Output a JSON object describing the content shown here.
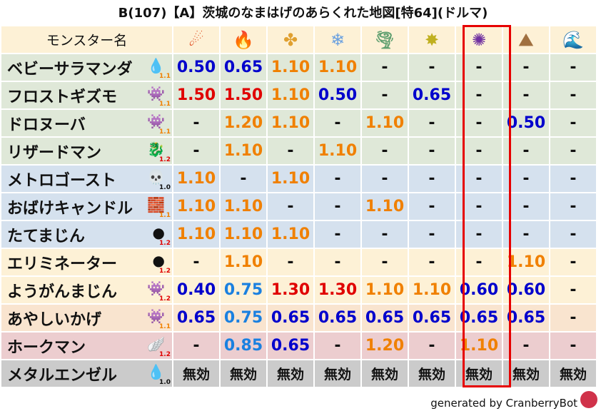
{
  "title": "B(107)【A】茨城のなまはげのあらくれた地図[特64](ドルマ)",
  "header": {
    "name_label": "モンスター名",
    "elements": [
      {
        "icon": "fire-meteor-icon",
        "glyph": "☄",
        "color": "#e0461a"
      },
      {
        "icon": "flame-icon",
        "glyph": "🔥",
        "color": "#f06020"
      },
      {
        "icon": "explosion-icon",
        "glyph": "✤",
        "color": "#e0a030"
      },
      {
        "icon": "ice-crystal-icon",
        "glyph": "❄",
        "color": "#6aa0e0"
      },
      {
        "icon": "tornado-icon",
        "glyph": "🌪",
        "color": "#60a070"
      },
      {
        "icon": "lightning-icon",
        "glyph": "✸",
        "color": "#c0b020"
      },
      {
        "icon": "dark-vortex-icon",
        "glyph": "✺",
        "color": "#7030a0"
      },
      {
        "icon": "rock-mountain-icon",
        "glyph": "⛰",
        "color": "#a07040"
      },
      {
        "icon": "water-wave-icon",
        "glyph": "🌊",
        "color": "#2080d0"
      }
    ],
    "highlighted_column": 6
  },
  "value_colors": {
    "weak": "#0000cc",
    "resist_light": "#1a80e0",
    "slight": "#f08000",
    "strong": "#e00000",
    "immune": "#111111"
  },
  "rows": [
    {
      "name": "ベビーサラマンダ",
      "icon": "water-drop-icon",
      "glyph": "💧",
      "level": "1.1",
      "level_color": "#f08000",
      "bg": "#dfe8d8",
      "values": [
        "0.50",
        "0.65",
        "1.10",
        "1.10",
        "-",
        "-",
        "-",
        "-",
        "-"
      ]
    },
    {
      "name": "フロストギズモ",
      "icon": "purple-gas-monster-icon",
      "glyph": "👾",
      "level": "1.1",
      "level_color": "#f08000",
      "bg": "#dfe8d8",
      "values": [
        "1.50",
        "1.50",
        "1.10",
        "0.50",
        "-",
        "0.65",
        "-",
        "-",
        "-"
      ]
    },
    {
      "name": "ドロヌーバ",
      "icon": "purple-gas-monster-icon",
      "glyph": "👾",
      "level": "1.1",
      "level_color": "#f08000",
      "bg": "#dfe8d8",
      "values": [
        "-",
        "1.20",
        "1.10",
        "-",
        "1.10",
        "-",
        "-",
        "0.50",
        "-"
      ]
    },
    {
      "name": "リザードマン",
      "icon": "red-dragon-icon",
      "glyph": "🐉",
      "level": "1.2",
      "level_color": "#e00000",
      "bg": "#dfe8d8",
      "values": [
        "-",
        "1.10",
        "-",
        "1.10",
        "-",
        "-",
        "-",
        "-",
        "-"
      ]
    },
    {
      "name": "メトロゴースト",
      "icon": "skull-icon",
      "glyph": "💀",
      "level": "1.0",
      "level_color": "#111111",
      "bg": "#d5e1ee",
      "values": [
        "1.10",
        "-",
        "1.10",
        "-",
        "-",
        "-",
        "-",
        "-",
        "-"
      ]
    },
    {
      "name": "おばけキャンドル",
      "icon": "brick-wall-icon",
      "glyph": "🧱",
      "level": "1.1",
      "level_color": "#f08000",
      "bg": "#d5e1ee",
      "values": [
        "1.10",
        "1.10",
        "-",
        "-",
        "1.10",
        "-",
        "-",
        "-",
        "-"
      ]
    },
    {
      "name": "たてまじん",
      "icon": "green-slime-icon",
      "glyph": "●",
      "level": "1.2",
      "level_color": "#e00000",
      "bg": "#d5e1ee",
      "values": [
        "1.10",
        "1.10",
        "1.10",
        "-",
        "-",
        "-",
        "-",
        "-",
        "-"
      ]
    },
    {
      "name": "エリミネーター",
      "icon": "green-slime-icon",
      "glyph": "●",
      "level": "1.2",
      "level_color": "#e00000",
      "bg": "#fdf1d6",
      "values": [
        "-",
        "1.10",
        "-",
        "-",
        "-",
        "-",
        "-",
        "1.10",
        "-"
      ]
    },
    {
      "name": "ようがんまじん",
      "icon": "purple-gas-monster-icon",
      "glyph": "👾",
      "level": "1.2",
      "level_color": "#e00000",
      "bg": "#fdf1d6",
      "values": [
        "0.40",
        "0.75",
        "1.30",
        "1.30",
        "1.10",
        "1.10",
        "0.60",
        "0.60",
        "-"
      ]
    },
    {
      "name": "あやしいかげ",
      "icon": "purple-gas-monster-icon",
      "glyph": "👾",
      "level": "1.1",
      "level_color": "#f08000",
      "bg": "#f9e4cf",
      "values": [
        "0.65",
        "0.75",
        "0.65",
        "0.65",
        "0.65",
        "0.65",
        "0.65",
        "0.65",
        "-"
      ]
    },
    {
      "name": "ホークマン",
      "icon": "white-wing-icon",
      "glyph": "🪽",
      "level": "1.2",
      "level_color": "#e00000",
      "bg": "#eccdcf",
      "values": [
        "-",
        "0.85",
        "0.65",
        "-",
        "1.20",
        "-",
        "1.10",
        "-",
        "-"
      ]
    },
    {
      "name": "メタルエンゼル",
      "icon": "blue-slime-icon",
      "glyph": "💧",
      "level": "1.0",
      "level_color": "#111111",
      "bg": "#cbcbcb",
      "values": [
        "無効",
        "無効",
        "無効",
        "無効",
        "無効",
        "無効",
        "無効",
        "無効",
        "無効"
      ]
    }
  ],
  "footer": {
    "text": "generated by CranberryBot",
    "icon": "cranberry-bot-icon"
  }
}
